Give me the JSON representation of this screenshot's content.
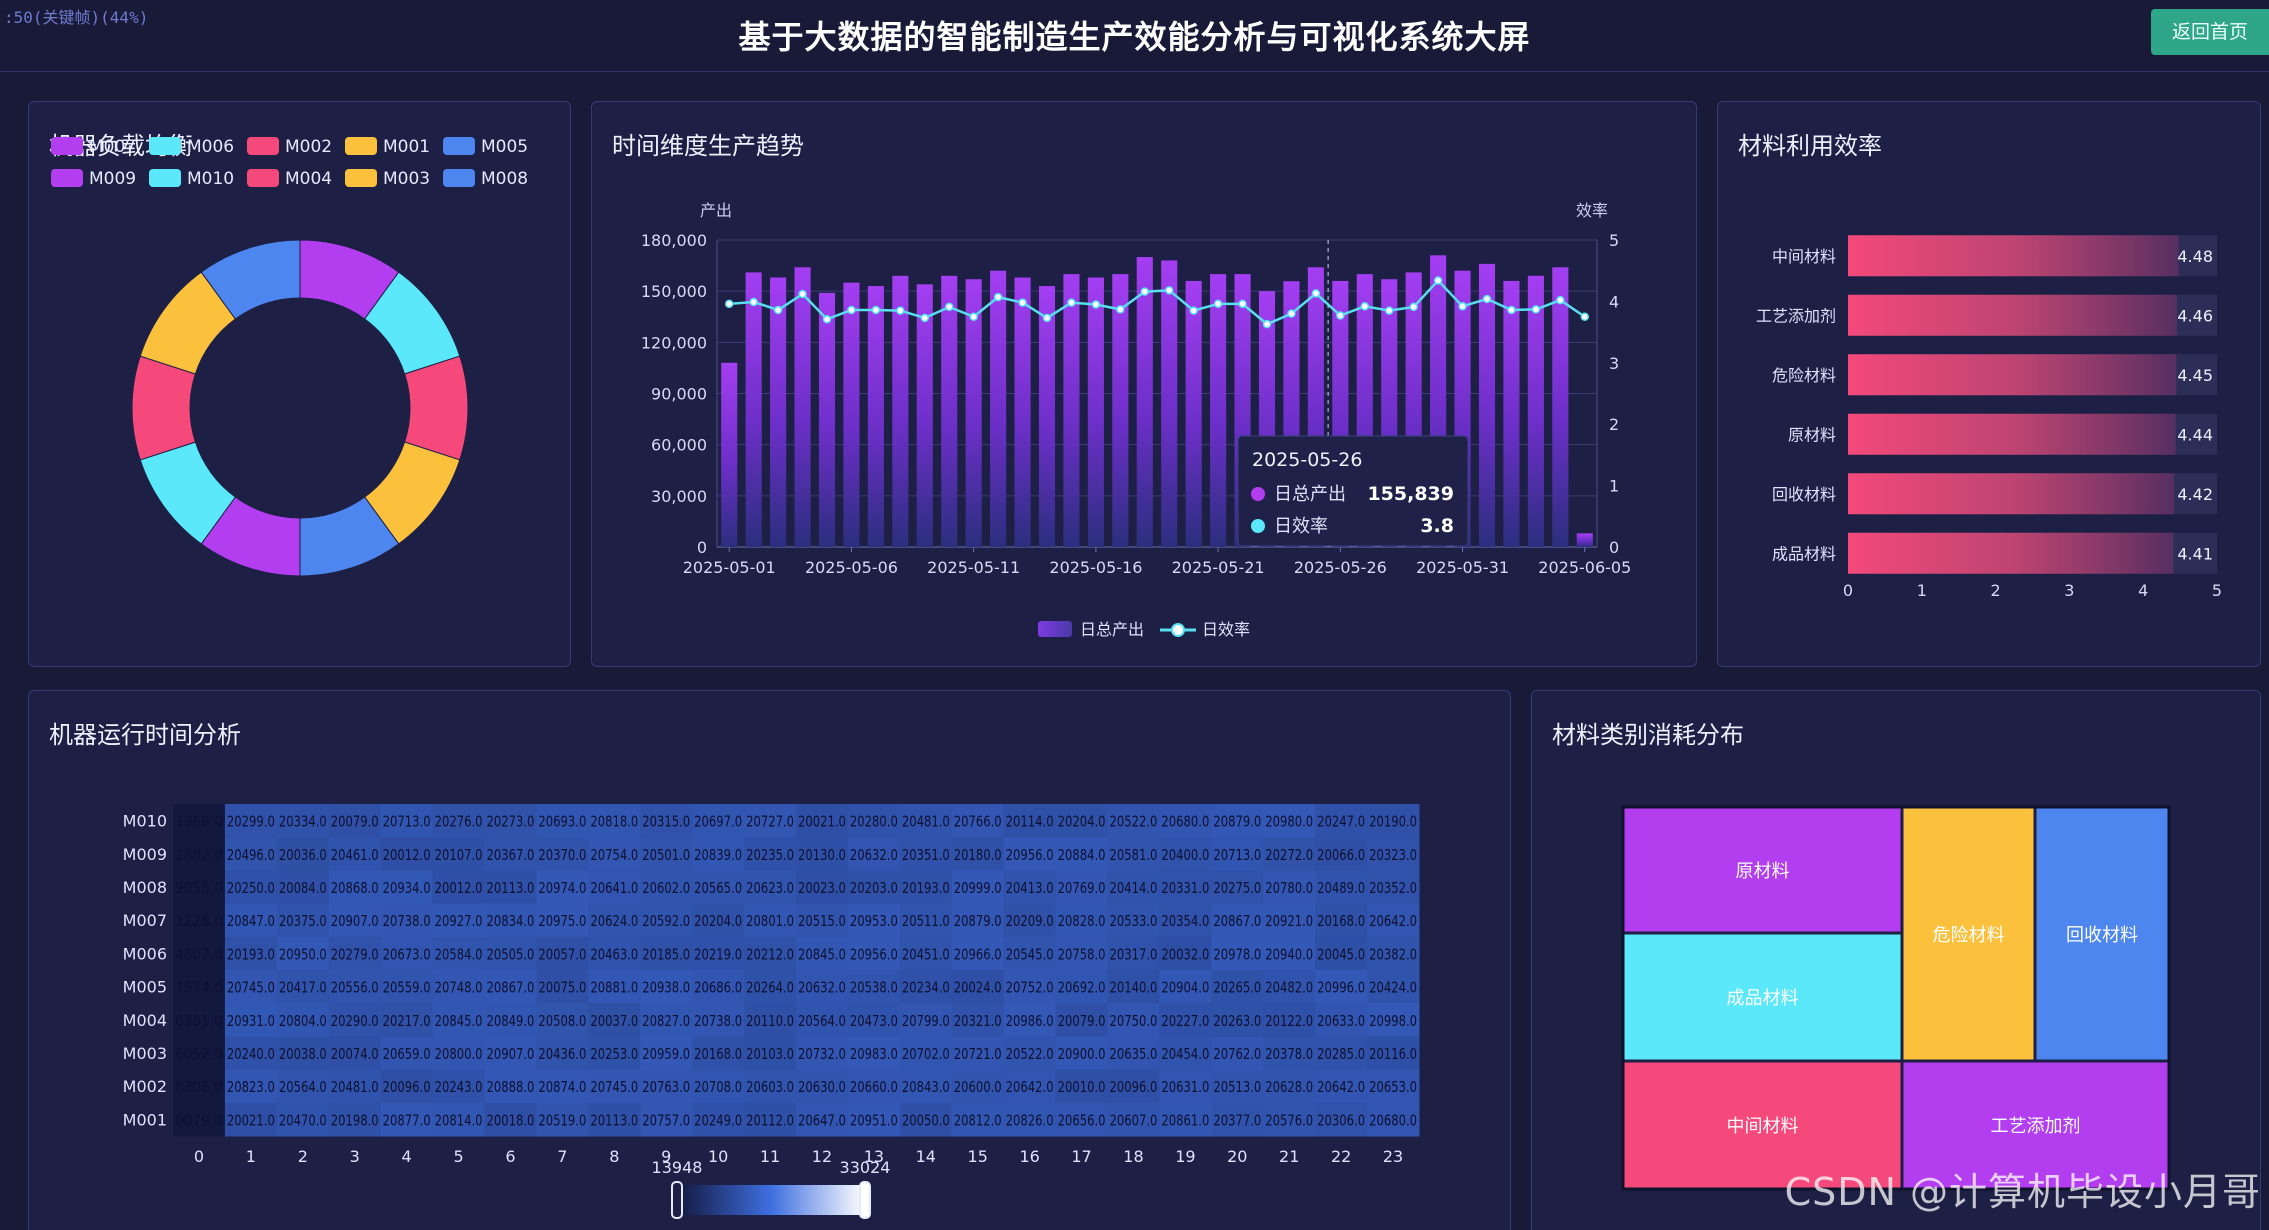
{
  "header": {
    "frame_label": ":50(关键帧)(44%)",
    "title": "基于大数据的智能制造生产效能分析与可视化系统大屏",
    "home_button": "返回首页"
  },
  "panels": {
    "machine_load": "机器负载均衡",
    "time_trend": "时间维度生产趋势",
    "material_efficiency": "材料利用效率",
    "runtime": "机器运行时间分析",
    "consumption": "材料类别消耗分布"
  },
  "colors": {
    "purple": "#b23ef0",
    "cyan": "#5ce8fb",
    "pink": "#f4497a",
    "yellow": "#fbc13d",
    "blue": "#4d86ef",
    "line": "#58dff0",
    "background": "#181a38",
    "panel": "#1d1f45"
  },
  "watermark": "CSDN @计算机毕设小月哥",
  "chart_data": [
    {
      "type": "pie",
      "id": "machine_load",
      "legend": [
        "M007",
        "M006",
        "M002",
        "M001",
        "M005",
        "M009",
        "M010",
        "M004",
        "M003",
        "M008"
      ],
      "legend_colors": [
        "#b23ef0",
        "#5ce8fb",
        "#f4497a",
        "#fbc13d",
        "#4d86ef",
        "#b23ef0",
        "#5ce8fb",
        "#f4497a",
        "#fbc13d",
        "#4d86ef"
      ],
      "slices": [
        {
          "name": "M007",
          "value": 10
        },
        {
          "name": "M006",
          "value": 10
        },
        {
          "name": "M002",
          "value": 10
        },
        {
          "name": "M001",
          "value": 10
        },
        {
          "name": "M005",
          "value": 10
        },
        {
          "name": "M009",
          "value": 10
        },
        {
          "name": "M010",
          "value": 10
        },
        {
          "name": "M004",
          "value": 10
        },
        {
          "name": "M003",
          "value": 10
        },
        {
          "name": "M008",
          "value": 10
        }
      ]
    },
    {
      "type": "bar",
      "id": "time_trend",
      "y_left_label": "产出",
      "y_right_label": "效率",
      "y_left_ticks": [
        "0",
        "30,000",
        "60,000",
        "90,000",
        "120,000",
        "150,000",
        "180,000"
      ],
      "y_right_ticks": [
        "0",
        "1",
        "2",
        "3",
        "4",
        "5"
      ],
      "ylim_left": [
        0,
        180000
      ],
      "ylim_right": [
        0,
        5
      ],
      "x_tick_labels": [
        "2025-05-01",
        "2025-05-06",
        "2025-05-11",
        "2025-05-16",
        "2025-05-21",
        "2025-05-26",
        "2025-05-31",
        "2025-06-05"
      ],
      "x": [
        "2025-05-01",
        "2025-05-02",
        "2025-05-03",
        "2025-05-04",
        "2025-05-05",
        "2025-05-06",
        "2025-05-07",
        "2025-05-08",
        "2025-05-09",
        "2025-05-10",
        "2025-05-11",
        "2025-05-12",
        "2025-05-13",
        "2025-05-14",
        "2025-05-15",
        "2025-05-16",
        "2025-05-17",
        "2025-05-18",
        "2025-05-19",
        "2025-05-20",
        "2025-05-21",
        "2025-05-22",
        "2025-05-23",
        "2025-05-24",
        "2025-05-25",
        "2025-05-26",
        "2025-05-27",
        "2025-05-28",
        "2025-05-29",
        "2025-05-30",
        "2025-05-31",
        "2025-06-01",
        "2025-06-02",
        "2025-06-03",
        "2025-06-04",
        "2025-06-05"
      ],
      "series": [
        {
          "name": "日总产出",
          "kind": "bar",
          "values": [
            108000,
            161000,
            158000,
            164000,
            149000,
            155000,
            153000,
            159000,
            154000,
            159000,
            157000,
            162000,
            158000,
            153000,
            160000,
            158000,
            160000,
            170000,
            168000,
            156000,
            160000,
            160000,
            150000,
            155839,
            164000,
            156000,
            160000,
            157000,
            161000,
            171000,
            162000,
            166000,
            156000,
            159000,
            164000,
            8000
          ]
        },
        {
          "name": "日效率",
          "kind": "line",
          "values": [
            3.96,
            3.99,
            3.86,
            4.12,
            3.71,
            3.86,
            3.86,
            3.85,
            3.73,
            3.91,
            3.75,
            4.07,
            3.98,
            3.73,
            3.98,
            3.95,
            3.87,
            4.16,
            4.18,
            3.85,
            3.96,
            3.96,
            3.63,
            3.8,
            4.13,
            3.77,
            3.92,
            3.85,
            3.91,
            4.34,
            3.92,
            4.04,
            3.86,
            3.87,
            4.02,
            3.75
          ]
        }
      ],
      "tooltip": {
        "date": "2025-05-26",
        "output_label": "日总产出",
        "output_value": "155,839",
        "efficiency_label": "日效率",
        "efficiency_value": "3.8"
      }
    },
    {
      "type": "bar",
      "id": "material_efficiency",
      "orientation": "horizontal",
      "categories": [
        "中间材料",
        "工艺添加剂",
        "危险材料",
        "原材料",
        "回收材料",
        "成品材料"
      ],
      "values": [
        4.48,
        4.46,
        4.45,
        4.44,
        4.42,
        4.41
      ],
      "value_labels": [
        "4.48",
        "4.46",
        "4.45",
        "4.44",
        "4.42",
        "4.41"
      ],
      "xlim": [
        0,
        5
      ],
      "x_ticks": [
        "0",
        "1",
        "2",
        "3",
        "4",
        "5"
      ]
    },
    {
      "type": "heatmap",
      "id": "runtime",
      "rows": [
        "M010",
        "M009",
        "M008",
        "M007",
        "M006",
        "M005",
        "M004",
        "M003",
        "M002",
        "M001"
      ],
      "columns": [
        "0",
        "1",
        "2",
        "3",
        "4",
        "5",
        "6",
        "7",
        "8",
        "9",
        "10",
        "11",
        "12",
        "13",
        "14",
        "15",
        "16",
        "17",
        "18",
        "19",
        "20",
        "21",
        "22",
        "23"
      ],
      "cell_labels": [
        [
          "1368.0",
          "20299.0",
          "20334.0",
          "20079.0",
          "20713.0",
          "20276.0",
          "20273.0",
          "20693.0",
          "20818.0",
          "20315.0",
          "20697.0",
          "20727.0",
          "20021.0",
          "20280.0",
          "20481.0",
          "20766.0",
          "20114.0",
          "20204.0",
          "20522.0",
          "20680.0",
          "20879.0",
          "20980.0",
          "20247.0",
          "20190.0"
        ],
        [
          "2882.0",
          "20496.0",
          "20036.0",
          "20461.0",
          "20012.0",
          "20107.0",
          "20367.0",
          "20370.0",
          "20754.0",
          "20501.0",
          "20839.0",
          "20235.0",
          "20130.0",
          "20632.0",
          "20351.0",
          "20180.0",
          "20956.0",
          "20884.0",
          "20581.0",
          "20400.0",
          "20713.0",
          "20272.0",
          "20066.0",
          "20323.0"
        ],
        [
          "9955.0",
          "20250.0",
          "20084.0",
          "20868.0",
          "20934.0",
          "20012.0",
          "20113.0",
          "20974.0",
          "20641.0",
          "20602.0",
          "20565.0",
          "20623.0",
          "20023.0",
          "20203.0",
          "20193.0",
          "20999.0",
          "20413.0",
          "20769.0",
          "20414.0",
          "20331.0",
          "20275.0",
          "20780.0",
          "20489.0",
          "20352.0"
        ],
        [
          "3228.0",
          "20847.0",
          "20375.0",
          "20907.0",
          "20738.0",
          "20927.0",
          "20834.0",
          "20975.0",
          "20624.0",
          "20592.0",
          "20204.0",
          "20801.0",
          "20515.0",
          "20953.0",
          "20511.0",
          "20879.0",
          "20209.0",
          "20828.0",
          "20533.0",
          "20354.0",
          "20867.0",
          "20921.0",
          "20168.0",
          "20642.0"
        ],
        [
          "4807.0",
          "20193.0",
          "20950.0",
          "20279.0",
          "20673.0",
          "20584.0",
          "20505.0",
          "20057.0",
          "20463.0",
          "20185.0",
          "20219.0",
          "20212.0",
          "20845.0",
          "20956.0",
          "20451.0",
          "20966.0",
          "20545.0",
          "20758.0",
          "20317.0",
          "20032.0",
          "20978.0",
          "20940.0",
          "20045.0",
          "20382.0"
        ],
        [
          "1574.0",
          "20745.0",
          "20417.0",
          "20556.0",
          "20559.0",
          "20748.0",
          "20867.0",
          "20075.0",
          "20881.0",
          "20938.0",
          "20686.0",
          "20264.0",
          "20632.0",
          "20538.0",
          "20234.0",
          "20024.0",
          "20752.0",
          "20692.0",
          "20140.0",
          "20904.0",
          "20265.0",
          "20482.0",
          "20996.0",
          "20424.0"
        ],
        [
          "6381.0",
          "20931.0",
          "20804.0",
          "20290.0",
          "20217.0",
          "20845.0",
          "20849.0",
          "20508.0",
          "20037.0",
          "20827.0",
          "20738.0",
          "20110.0",
          "20564.0",
          "20473.0",
          "20799.0",
          "20321.0",
          "20986.0",
          "20079.0",
          "20750.0",
          "20227.0",
          "20263.0",
          "20122.0",
          "20633.0",
          "20998.0"
        ],
        [
          "6052.0",
          "20240.0",
          "20038.0",
          "20074.0",
          "20659.0",
          "20800.0",
          "20907.0",
          "20436.0",
          "20253.0",
          "20959.0",
          "20168.0",
          "20103.0",
          "20732.0",
          "20983.0",
          "20702.0",
          "20721.0",
          "20522.0",
          "20900.0",
          "20635.0",
          "20454.0",
          "20762.0",
          "20378.0",
          "20285.0",
          "20116.0"
        ],
        [
          "8306.0",
          "20823.0",
          "20564.0",
          "20481.0",
          "20096.0",
          "20243.0",
          "20888.0",
          "20874.0",
          "20745.0",
          "20763.0",
          "20708.0",
          "20603.0",
          "20630.0",
          "20660.0",
          "20843.0",
          "20600.0",
          "20642.0",
          "20010.0",
          "20096.0",
          "20631.0",
          "20513.0",
          "20628.0",
          "20642.0",
          "20653.0"
        ],
        [
          "0079.0",
          "20021.0",
          "20470.0",
          "20198.0",
          "20877.0",
          "20814.0",
          "20018.0",
          "20519.0",
          "20113.0",
          "20757.0",
          "20249.0",
          "20112.0",
          "20647.0",
          "20951.0",
          "20050.0",
          "20812.0",
          "20826.0",
          "20656.0",
          "20607.0",
          "20861.0",
          "20377.0",
          "20576.0",
          "20306.0",
          "20680.0"
        ]
      ],
      "visual_map": {
        "min": 13948,
        "max": 33024,
        "min_label": "13948",
        "max_label": "33024"
      }
    },
    {
      "type": "treemap",
      "id": "consumption",
      "items": [
        "原材料",
        "危险材料",
        "回收材料",
        "成品材料",
        "中间材料",
        "工艺添加剂"
      ],
      "colors": [
        "#b23ef0",
        "#fbc13d",
        "#4d86ef",
        "#5ce8fb",
        "#f4497a",
        "#b23ef0"
      ]
    }
  ]
}
